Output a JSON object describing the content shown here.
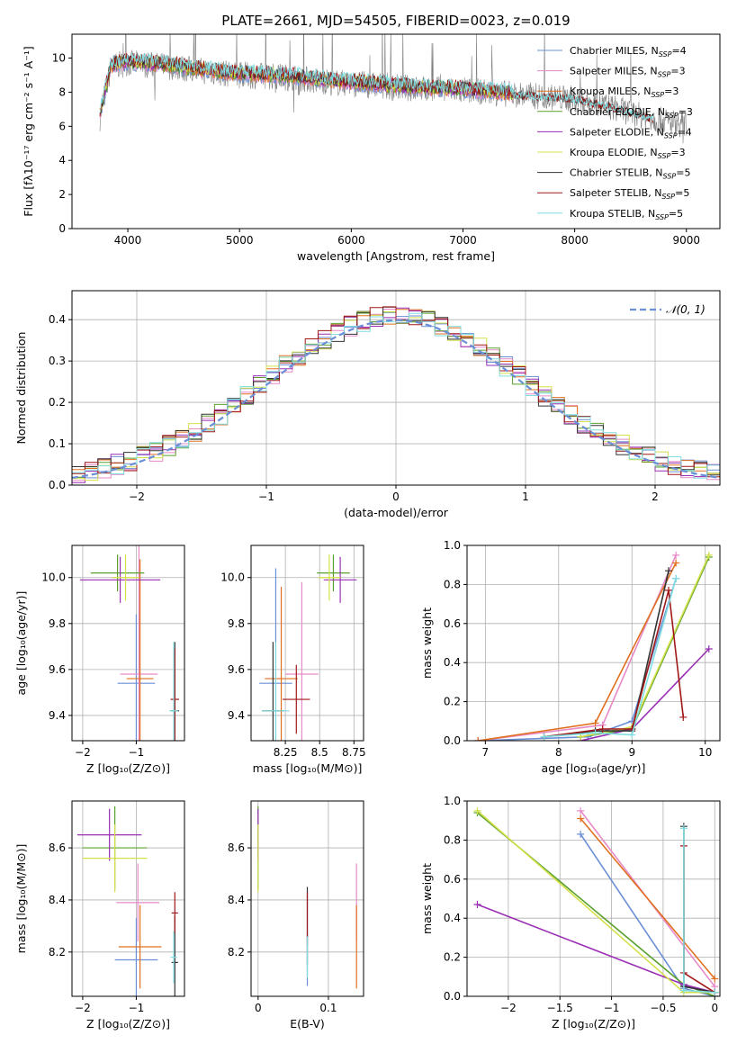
{
  "figure": {
    "title": "PLATE=2661, MJD=54505, FIBERID=0023, z=0.019"
  },
  "series": [
    {
      "key": "chabrier_miles",
      "base": "Chabrier MILES, N",
      "sub": "SSP",
      "tail": "=4",
      "color": "#6a8fd6"
    },
    {
      "key": "salpeter_miles",
      "base": "Salpeter MILES, N",
      "sub": "SSP",
      "tail": "=3",
      "color": "#e68ac8"
    },
    {
      "key": "kroupa_miles",
      "base": "Kroupa MILES, N",
      "sub": "SSP",
      "tail": "=3",
      "color": "#e07020"
    },
    {
      "key": "chabrier_elodie",
      "base": "Chabrier ELODIE, N",
      "sub": "SSP",
      "tail": "=3",
      "color": "#5aa02c"
    },
    {
      "key": "salpeter_elodie",
      "base": "Salpeter ELODIE, N",
      "sub": "SSP",
      "tail": "=4",
      "color": "#9a2fb4"
    },
    {
      "key": "kroupa_elodie",
      "base": "Kroupa ELODIE, N",
      "sub": "SSP",
      "tail": "=3",
      "color": "#d4e04a"
    },
    {
      "key": "chabrier_stelib",
      "base": "Chabrier STELIB, N",
      "sub": "SSP",
      "tail": "=5",
      "color": "#333333"
    },
    {
      "key": "salpeter_stelib",
      "base": "Salpeter STELIB, N",
      "sub": "SSP",
      "tail": "=5",
      "color": "#a01818"
    },
    {
      "key": "kroupa_stelib",
      "base": "Kroupa STELIB, N",
      "sub": "SSP",
      "tail": "=5",
      "color": "#80dde0"
    }
  ],
  "chart_data": [
    {
      "id": "spectrum",
      "type": "line",
      "xlabel": "wavelength [Angstrom, rest frame]",
      "ylabel": "Flux [fλ10⁻¹⁷ erg cm⁻² s⁻¹ A⁻¹]",
      "xlim": [
        3500,
        9300
      ],
      "ylim": [
        0,
        11.4
      ],
      "xticks": [
        4000,
        5000,
        6000,
        7000,
        8000,
        9000
      ],
      "yticks": [
        0,
        2,
        4,
        6,
        8,
        10
      ],
      "legend": "top-right",
      "grid": false,
      "data_continuum": {
        "x": [
          3750,
          3850,
          4000,
          4200,
          4400,
          4600,
          5000,
          5400,
          5800,
          6200,
          6600,
          7000,
          7400,
          7600,
          7800,
          8000,
          8200,
          8400,
          8600,
          8800,
          9000
        ],
        "y": [
          6.5,
          9.5,
          9.7,
          9.6,
          9.5,
          9.3,
          9.0,
          8.9,
          8.6,
          8.4,
          8.2,
          8.1,
          7.9,
          7.8,
          7.7,
          7.6,
          7.3,
          7.0,
          6.6,
          6.3,
          6.1
        ]
      },
      "model_continuum": {
        "x": [
          3750,
          3850,
          4000,
          4200,
          4400,
          4600,
          5000,
          5400,
          5800,
          6200,
          6600,
          7000,
          7400,
          7450
        ],
        "y": [
          6.8,
          9.6,
          9.8,
          9.7,
          9.6,
          9.4,
          9.1,
          9.0,
          8.7,
          8.5,
          8.3,
          8.2,
          8.0,
          7.9
        ]
      }
    },
    {
      "id": "residuals",
      "type": "bar",
      "xlabel": "(data-model)/error",
      "ylabel": "Normed distribution",
      "xlim": [
        -2.5,
        2.5
      ],
      "ylim": [
        0,
        0.47
      ],
      "xticks": [
        -2,
        -1,
        0,
        1,
        2
      ],
      "yticks": [
        0.0,
        0.1,
        0.2,
        0.3,
        0.4
      ],
      "grid": true,
      "legend": "top-right",
      "gauss_label": "𝒩(0, 1)",
      "bin_width": 0.1,
      "envelope": [
        0.03,
        0.03,
        0.035,
        0.045,
        0.05,
        0.055,
        0.065,
        0.08,
        0.09,
        0.1,
        0.115,
        0.135,
        0.15,
        0.16,
        0.175,
        0.19,
        0.2,
        0.215,
        0.23,
        0.25,
        0.265,
        0.28,
        0.295,
        0.31,
        0.325,
        0.34,
        0.35,
        0.36,
        0.37,
        0.38,
        0.39,
        0.39,
        0.4,
        0.405,
        0.4,
        0.405,
        0.4,
        0.395,
        0.4,
        0.39,
        0.38,
        0.375,
        0.36,
        0.355,
        0.34,
        0.325,
        0.31,
        0.3,
        0.29,
        0.275,
        0.26,
        0.245,
        0.23,
        0.215,
        0.2,
        0.185,
        0.17,
        0.155,
        0.14,
        0.125,
        0.11,
        0.1,
        0.09,
        0.08,
        0.07,
        0.065,
        0.055,
        0.05,
        0.045,
        0.04,
        0.035,
        0.03,
        0.03,
        0.025,
        0.025,
        0.02,
        0.02,
        0.02,
        0.02,
        0.02,
        0.02,
        0.02,
        0.02,
        0.02,
        0.02,
        0.02,
        0.02,
        0.02,
        0.02,
        0.02,
        0.02,
        0.02,
        0.02,
        0.02,
        0.02,
        0.02,
        0.02,
        0.02,
        0.02,
        0.02
      ]
    },
    {
      "id": "age_vs_Z",
      "type": "scatter",
      "xlabel": "Z [log₁₀(Z/Z⊙)]",
      "ylabel": "age  [log₁₀(age/yr)]",
      "xlim": [
        -2.2,
        -0.1
      ],
      "ylim": [
        9.29,
        10.14
      ],
      "xticks": [
        -2,
        -1
      ],
      "yticks": [
        9.4,
        9.6,
        9.8,
        10.0
      ],
      "grid": true,
      "points": [
        {
          "s": 0,
          "x": -1.0,
          "y": 9.54,
          "xe": 0.35,
          "ye": 0.3
        },
        {
          "s": 1,
          "x": -0.95,
          "y": 9.58,
          "xe": 0.35,
          "ye": 0.62
        },
        {
          "s": 2,
          "x": -0.93,
          "y": 9.56,
          "xe": 0.25,
          "ye": 0.52
        },
        {
          "s": 3,
          "x": -1.35,
          "y": 10.02,
          "xe": 0.5,
          "ye": 0.08
        },
        {
          "s": 4,
          "x": -1.3,
          "y": 9.99,
          "xe": 0.75,
          "ye": 0.1
        },
        {
          "s": 5,
          "x": -1.2,
          "y": 10.0,
          "xe": 0.25,
          "ye": 0.1
        },
        {
          "s": 6,
          "x": -0.28,
          "y": 9.42,
          "xe": 0.08,
          "ye": 0.3
        },
        {
          "s": 7,
          "x": -0.28,
          "y": 9.47,
          "xe": 0.08,
          "ye": 0.22
        },
        {
          "s": 8,
          "x": -0.3,
          "y": 9.42,
          "xe": 0.08,
          "ye": 0.3
        }
      ]
    },
    {
      "id": "age_vs_mass",
      "type": "scatter",
      "xlabel": "mass [log₁₀(M/M⊙)]",
      "ylabel": "",
      "xlim": [
        8.0,
        8.82
      ],
      "ylim": [
        9.29,
        10.14
      ],
      "xticks": [
        8.25,
        8.5,
        8.75
      ],
      "yticks": [
        9.4,
        9.6,
        9.8,
        10.0
      ],
      "grid": true,
      "points": [
        {
          "s": 0,
          "x": 8.18,
          "y": 9.54,
          "xe": 0.12,
          "ye": 0.5
        },
        {
          "s": 1,
          "x": 8.37,
          "y": 9.58,
          "xe": 0.12,
          "ye": 0.4
        },
        {
          "s": 2,
          "x": 8.22,
          "y": 9.56,
          "xe": 0.12,
          "ye": 0.4
        },
        {
          "s": 3,
          "x": 8.6,
          "y": 10.02,
          "xe": 0.12,
          "ye": 0.08
        },
        {
          "s": 4,
          "x": 8.65,
          "y": 9.99,
          "xe": 0.12,
          "ye": 0.1
        },
        {
          "s": 5,
          "x": 8.57,
          "y": 10.0,
          "xe": 0.08,
          "ye": 0.1
        },
        {
          "s": 6,
          "x": 8.16,
          "y": 9.42,
          "xe": 0.08,
          "ye": 0.3
        },
        {
          "s": 7,
          "x": 8.33,
          "y": 9.47,
          "xe": 0.1,
          "ye": 0.15
        },
        {
          "s": 8,
          "x": 8.18,
          "y": 9.42,
          "xe": 0.1,
          "ye": 0.3
        }
      ]
    },
    {
      "id": "weight_vs_age",
      "type": "line",
      "xlabel": "age  [log₁₀(age/yr)]",
      "ylabel": "mass weight",
      "xlim": [
        6.75,
        10.2
      ],
      "ylim": [
        0,
        1.0
      ],
      "xticks": [
        7,
        8,
        9,
        10
      ],
      "yticks": [
        0.0,
        0.2,
        0.4,
        0.6,
        0.8,
        1.0
      ],
      "grid": true,
      "lines": [
        {
          "s": 0,
          "x": [
            6.9,
            8.4,
            9.0,
            9.6
          ],
          "y": [
            0.0,
            0.02,
            0.1,
            0.83
          ]
        },
        {
          "s": 1,
          "x": [
            6.9,
            8.6,
            9.6
          ],
          "y": [
            0.0,
            0.08,
            0.95
          ]
        },
        {
          "s": 2,
          "x": [
            6.9,
            8.5,
            9.6
          ],
          "y": [
            0.0,
            0.09,
            0.91
          ]
        },
        {
          "s": 3,
          "x": [
            8.3,
            9.0,
            10.05
          ],
          "y": [
            0.02,
            0.06,
            0.94
          ]
        },
        {
          "s": 4,
          "x": [
            8.3,
            9.0,
            10.05
          ],
          "y": [
            0.0,
            0.06,
            0.47
          ]
        },
        {
          "s": 5,
          "x": [
            8.3,
            9.0,
            10.05
          ],
          "y": [
            0.02,
            0.07,
            0.95
          ]
        },
        {
          "s": 6,
          "x": [
            7.8,
            8.5,
            9.0,
            9.5
          ],
          "y": [
            0.02,
            0.05,
            0.05,
            0.87
          ]
        },
        {
          "s": 7,
          "x": [
            7.8,
            8.6,
            9.0,
            9.5,
            9.7
          ],
          "y": [
            0.02,
            0.06,
            0.06,
            0.77,
            0.12
          ]
        },
        {
          "s": 8,
          "x": [
            7.8,
            8.5,
            9.0,
            9.6
          ],
          "y": [
            0.02,
            0.04,
            0.03,
            0.83
          ]
        }
      ]
    },
    {
      "id": "mass_vs_Z",
      "type": "scatter",
      "xlabel": "Z [log₁₀(Z/Z⊙)]",
      "ylabel": "mass [log₁₀(M/M⊙)]",
      "xlim": [
        -2.2,
        -0.1
      ],
      "ylim": [
        8.03,
        8.78
      ],
      "xticks": [
        -2,
        -1
      ],
      "yticks": [
        8.2,
        8.4,
        8.6
      ],
      "grid": true,
      "points": [
        {
          "s": 0,
          "x": -1.0,
          "y": 8.17,
          "xe": 0.4,
          "ye": 0.16
        },
        {
          "s": 1,
          "x": -0.97,
          "y": 8.39,
          "xe": 0.4,
          "ye": 0.15
        },
        {
          "s": 2,
          "x": -0.93,
          "y": 8.22,
          "xe": 0.4,
          "ye": 0.16
        },
        {
          "s": 3,
          "x": -1.4,
          "y": 8.6,
          "xe": 0.6,
          "ye": 0.16
        },
        {
          "s": 4,
          "x": -1.5,
          "y": 8.65,
          "xe": 0.6,
          "ye": 0.1
        },
        {
          "s": 5,
          "x": -1.4,
          "y": 8.56,
          "xe": 0.6,
          "ye": 0.13
        },
        {
          "s": 6,
          "x": -0.28,
          "y": 8.16,
          "xe": 0.06,
          "ye": 0.18
        },
        {
          "s": 7,
          "x": -0.28,
          "y": 8.35,
          "xe": 0.06,
          "ye": 0.08
        },
        {
          "s": 8,
          "x": -0.3,
          "y": 8.18,
          "xe": 0.06,
          "ye": 0.1
        }
      ]
    },
    {
      "id": "mass_vs_ebv",
      "type": "scatter",
      "xlabel": "E(B-V)",
      "ylabel": "",
      "xlim": [
        -0.01,
        0.15
      ],
      "ylim": [
        8.03,
        8.78
      ],
      "xticks": [
        0.0,
        0.1
      ],
      "yticks": [
        8.2,
        8.4,
        8.6
      ],
      "grid": true,
      "points": [
        {
          "s": 0,
          "x": 0.07,
          "y": 8.17,
          "xe": 0.0,
          "ye": 0.1
        },
        {
          "s": 1,
          "x": 0.14,
          "y": 8.39,
          "xe": 0.0,
          "ye": 0.15
        },
        {
          "s": 2,
          "x": 0.14,
          "y": 8.22,
          "xe": 0.0,
          "ye": 0.16
        },
        {
          "s": 3,
          "x": 0.0,
          "y": 8.6,
          "xe": 0.0,
          "ye": 0.16
        },
        {
          "s": 4,
          "x": 0.0,
          "y": 8.65,
          "xe": 0.0,
          "ye": 0.1
        },
        {
          "s": 5,
          "x": 0.0,
          "y": 8.56,
          "xe": 0.0,
          "ye": 0.13
        },
        {
          "s": 6,
          "x": 0.07,
          "y": 8.3,
          "xe": 0.0,
          "ye": 0.15
        },
        {
          "s": 7,
          "x": 0.07,
          "y": 8.33,
          "xe": 0.0,
          "ye": 0.1
        },
        {
          "s": 8,
          "x": 0.07,
          "y": 8.18,
          "xe": 0.0,
          "ye": 0.08
        }
      ]
    },
    {
      "id": "weight_vs_Z",
      "type": "line",
      "xlabel": "Z [log₁₀(Z/Z⊙)]",
      "ylabel": "mass weight",
      "xlim": [
        -2.4,
        0.05
      ],
      "ylim": [
        0,
        1.0
      ],
      "xticks": [
        -2.0,
        -1.5,
        -1.0,
        -0.5,
        0.0
      ],
      "yticks": [
        0.0,
        0.2,
        0.4,
        0.6,
        0.8,
        1.0
      ],
      "grid": true,
      "lines": [
        {
          "s": 0,
          "x": [
            -1.3,
            -0.3,
            0.0
          ],
          "y": [
            0.83,
            0.04,
            0.0
          ]
        },
        {
          "s": 1,
          "x": [
            -1.3,
            0.0
          ],
          "y": [
            0.95,
            0.05
          ]
        },
        {
          "s": 2,
          "x": [
            -1.3,
            0.0
          ],
          "y": [
            0.91,
            0.09
          ]
        },
        {
          "s": 3,
          "x": [
            -2.3,
            -0.3,
            0.0
          ],
          "y": [
            0.94,
            0.06,
            0.0
          ]
        },
        {
          "s": 4,
          "x": [
            -2.3,
            -0.3,
            0.0
          ],
          "y": [
            0.47,
            0.06,
            0.02
          ]
        },
        {
          "s": 5,
          "x": [
            -2.3,
            -0.3,
            0.0
          ],
          "y": [
            0.95,
            0.02,
            0.02
          ]
        },
        {
          "s": 6,
          "x": [
            -0.3,
            -0.3,
            0.0
          ],
          "y": [
            0.87,
            0.05,
            0.02
          ]
        },
        {
          "s": 7,
          "x": [
            -0.3,
            -0.3,
            0.0
          ],
          "y": [
            0.77,
            0.12,
            0.02
          ]
        },
        {
          "s": 8,
          "x": [
            -0.3,
            -0.3,
            0.0
          ],
          "y": [
            0.86,
            0.03,
            0.02
          ]
        }
      ]
    }
  ]
}
